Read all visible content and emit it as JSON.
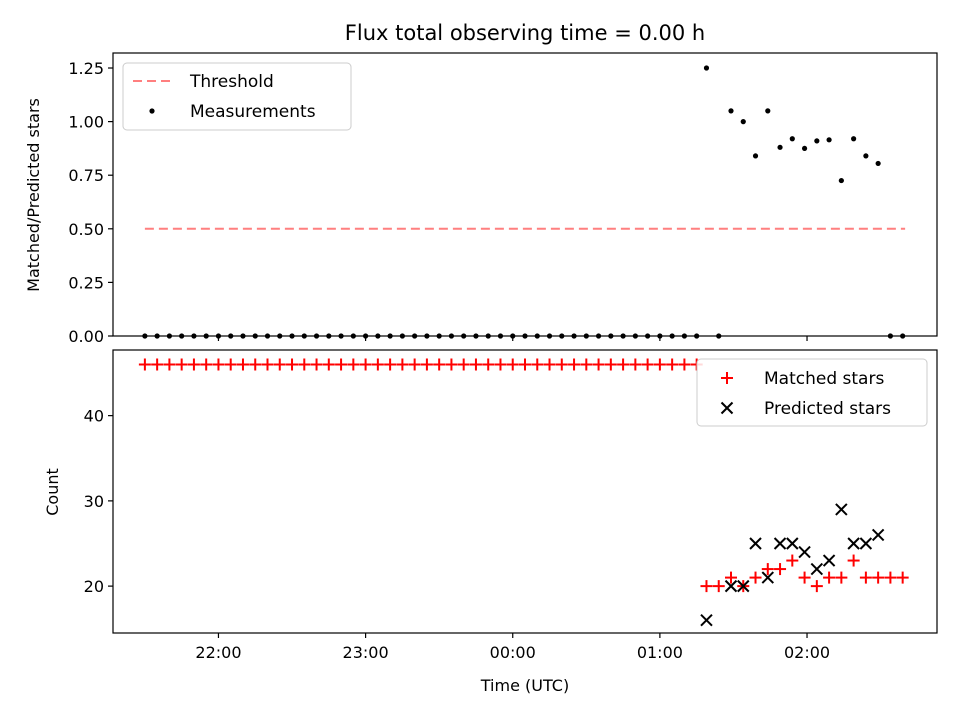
{
  "chart_data": [
    {
      "type": "scatter",
      "title": "Flux total observing time = 0.00 h",
      "xlabel": "",
      "ylabel": "Matched/Predicted stars",
      "ylim": [
        0,
        1.32
      ],
      "yticks": [
        "0.00",
        "0.25",
        "0.50",
        "0.75",
        "1.00",
        "1.25"
      ],
      "ytick_values": [
        0,
        0.25,
        0.5,
        0.75,
        1.0,
        1.25
      ],
      "legend": {
        "placement": "top-left",
        "entries": [
          "Threshold",
          "Measurements"
        ]
      },
      "threshold": {
        "name": "Threshold",
        "value": 0.5,
        "x_start": "21:30",
        "x_end": "02:40",
        "color": "#ff7f7f"
      },
      "series": [
        {
          "name": "Measurements",
          "color": "#000000",
          "points": [
            [
              "21:30",
              0
            ],
            [
              "21:35",
              0
            ],
            [
              "21:40",
              0
            ],
            [
              "21:45",
              0
            ],
            [
              "21:50",
              0
            ],
            [
              "21:55",
              0
            ],
            [
              "22:00",
              0
            ],
            [
              "22:05",
              0
            ],
            [
              "22:10",
              0
            ],
            [
              "22:15",
              0
            ],
            [
              "22:20",
              0
            ],
            [
              "22:25",
              0
            ],
            [
              "22:30",
              0
            ],
            [
              "22:35",
              0
            ],
            [
              "22:40",
              0
            ],
            [
              "22:45",
              0
            ],
            [
              "22:50",
              0
            ],
            [
              "22:55",
              0
            ],
            [
              "23:00",
              0
            ],
            [
              "23:05",
              0
            ],
            [
              "23:10",
              0
            ],
            [
              "23:15",
              0
            ],
            [
              "23:20",
              0
            ],
            [
              "23:25",
              0
            ],
            [
              "23:30",
              0
            ],
            [
              "23:35",
              0
            ],
            [
              "23:40",
              0
            ],
            [
              "23:45",
              0
            ],
            [
              "23:50",
              0
            ],
            [
              "23:55",
              0
            ],
            [
              "00:00",
              0
            ],
            [
              "00:05",
              0
            ],
            [
              "00:10",
              0
            ],
            [
              "00:15",
              0
            ],
            [
              "00:20",
              0
            ],
            [
              "00:25",
              0
            ],
            [
              "00:30",
              0
            ],
            [
              "00:35",
              0
            ],
            [
              "00:40",
              0
            ],
            [
              "00:45",
              0
            ],
            [
              "00:50",
              0
            ],
            [
              "00:55",
              0
            ],
            [
              "01:00",
              0
            ],
            [
              "01:05",
              0
            ],
            [
              "01:10",
              0
            ],
            [
              "01:15",
              0
            ],
            [
              "01:19",
              1.25
            ],
            [
              "01:24",
              0
            ],
            [
              "01:29",
              1.05
            ],
            [
              "01:34",
              1.0
            ],
            [
              "01:39",
              0.84
            ],
            [
              "01:44",
              1.05
            ],
            [
              "01:49",
              0.88
            ],
            [
              "01:54",
              0.92
            ],
            [
              "01:59",
              0.875
            ],
            [
              "02:04",
              0.91
            ],
            [
              "02:09",
              0.915
            ],
            [
              "02:14",
              0.725
            ],
            [
              "02:19",
              0.92
            ],
            [
              "02:24",
              0.84
            ],
            [
              "02:29",
              0.805
            ],
            [
              "02:34",
              0
            ],
            [
              "02:39",
              0
            ]
          ]
        }
      ]
    },
    {
      "type": "scatter",
      "title": "",
      "xlabel": "Time (UTC)",
      "ylabel": "Count",
      "ylim": [
        14.5,
        47.7
      ],
      "yticks": [
        "20",
        "30",
        "40"
      ],
      "ytick_values": [
        20,
        30,
        40
      ],
      "xlim": [
        "21:17",
        "02:53"
      ],
      "xticks": [
        "22:00",
        "23:00",
        "00:00",
        "01:00",
        "02:00"
      ],
      "legend": {
        "placement": "top-right",
        "entries": [
          "Matched stars",
          "Predicted stars"
        ]
      },
      "series": [
        {
          "name": "Matched stars",
          "marker": "plus",
          "color": "#ff0000",
          "points": [
            [
              "21:30",
              46
            ],
            [
              "21:35",
              46
            ],
            [
              "21:40",
              46
            ],
            [
              "21:45",
              46
            ],
            [
              "21:50",
              46
            ],
            [
              "21:55",
              46
            ],
            [
              "22:00",
              46
            ],
            [
              "22:05",
              46
            ],
            [
              "22:10",
              46
            ],
            [
              "22:15",
              46
            ],
            [
              "22:20",
              46
            ],
            [
              "22:25",
              46
            ],
            [
              "22:30",
              46
            ],
            [
              "22:35",
              46
            ],
            [
              "22:40",
              46
            ],
            [
              "22:45",
              46
            ],
            [
              "22:50",
              46
            ],
            [
              "22:55",
              46
            ],
            [
              "23:00",
              46
            ],
            [
              "23:05",
              46
            ],
            [
              "23:10",
              46
            ],
            [
              "23:15",
              46
            ],
            [
              "23:20",
              46
            ],
            [
              "23:25",
              46
            ],
            [
              "23:30",
              46
            ],
            [
              "23:35",
              46
            ],
            [
              "23:40",
              46
            ],
            [
              "23:45",
              46
            ],
            [
              "23:50",
              46
            ],
            [
              "23:55",
              46
            ],
            [
              "00:00",
              46
            ],
            [
              "00:05",
              46
            ],
            [
              "00:10",
              46
            ],
            [
              "00:15",
              46
            ],
            [
              "00:20",
              46
            ],
            [
              "00:25",
              46
            ],
            [
              "00:30",
              46
            ],
            [
              "00:35",
              46
            ],
            [
              "00:40",
              46
            ],
            [
              "00:45",
              46
            ],
            [
              "00:50",
              46
            ],
            [
              "00:55",
              46
            ],
            [
              "01:00",
              46
            ],
            [
              "01:05",
              46
            ],
            [
              "01:10",
              46
            ],
            [
              "01:15",
              46
            ],
            [
              "01:19",
              20
            ],
            [
              "01:24",
              20
            ],
            [
              "01:29",
              21
            ],
            [
              "01:34",
              20
            ],
            [
              "01:39",
              21
            ],
            [
              "01:44",
              22
            ],
            [
              "01:49",
              22
            ],
            [
              "01:54",
              23
            ],
            [
              "01:59",
              21
            ],
            [
              "02:04",
              20
            ],
            [
              "02:09",
              21
            ],
            [
              "02:14",
              21
            ],
            [
              "02:19",
              23
            ],
            [
              "02:24",
              21
            ],
            [
              "02:29",
              21
            ],
            [
              "02:34",
              21
            ],
            [
              "02:39",
              21
            ]
          ]
        },
        {
          "name": "Predicted stars",
          "marker": "x",
          "color": "#000000",
          "points": [
            [
              "01:19",
              16
            ],
            [
              "01:29",
              20
            ],
            [
              "01:34",
              20
            ],
            [
              "01:39",
              25
            ],
            [
              "01:44",
              21
            ],
            [
              "01:49",
              25
            ],
            [
              "01:54",
              25
            ],
            [
              "01:59",
              24
            ],
            [
              "02:04",
              22
            ],
            [
              "02:09",
              23
            ],
            [
              "02:14",
              29
            ],
            [
              "02:19",
              25
            ],
            [
              "02:24",
              25
            ],
            [
              "02:29",
              26
            ]
          ]
        }
      ]
    }
  ]
}
